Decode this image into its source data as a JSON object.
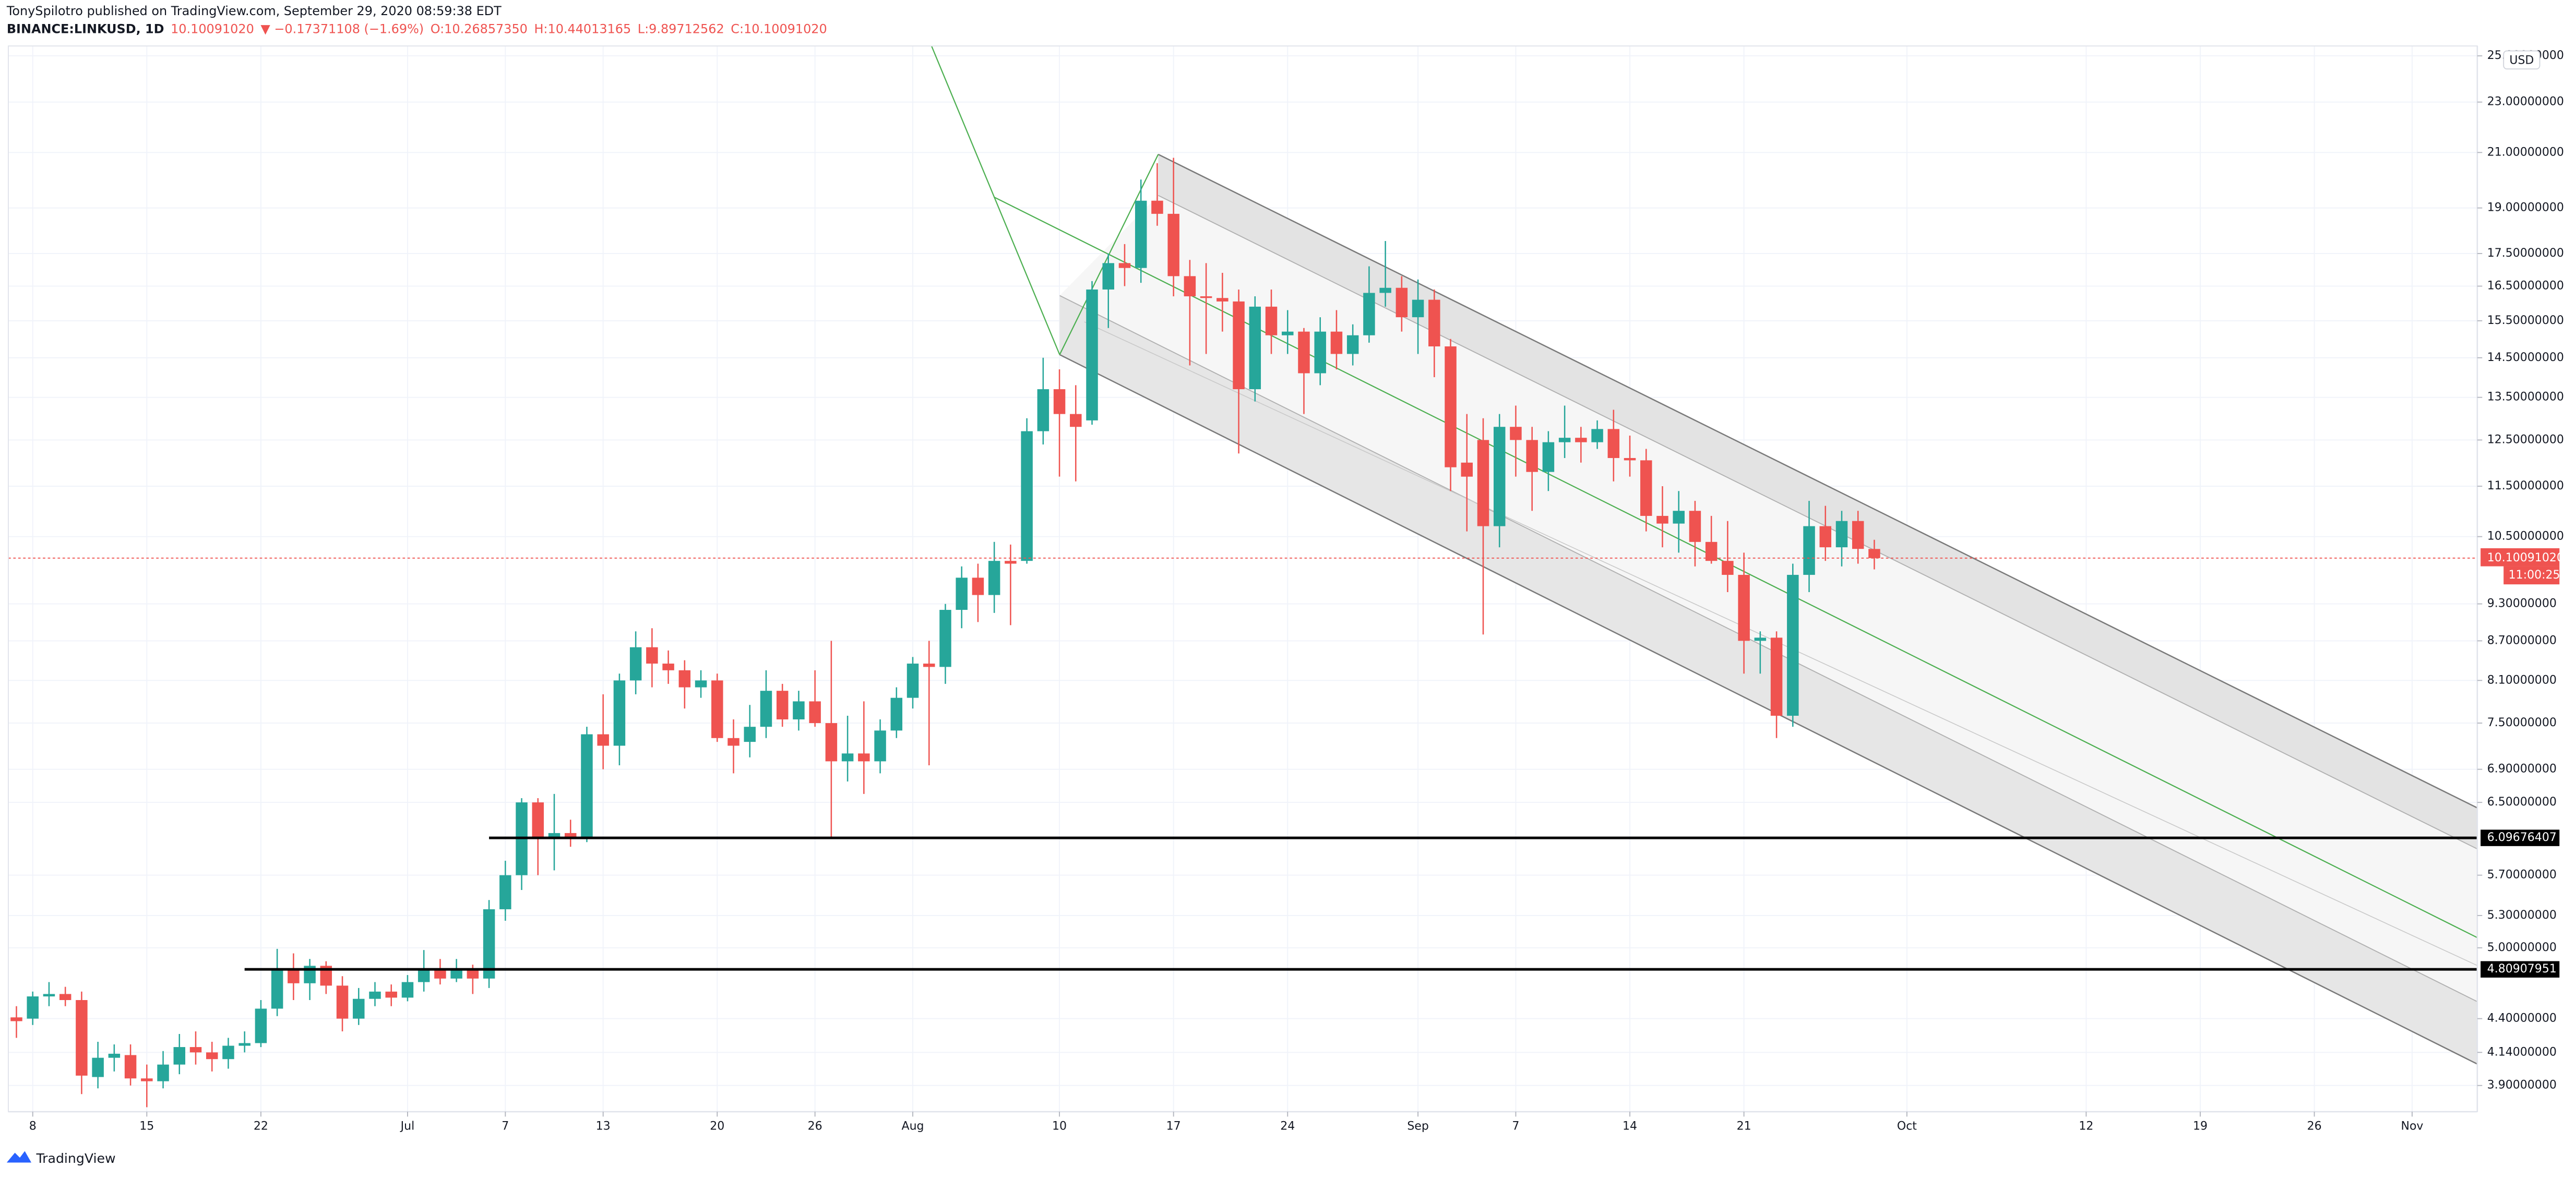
{
  "header": {
    "published": "TonySpilotro published on TradingView.com, September 29, 2020 08:59:38 EDT",
    "symbol": "BINANCE:LINKUSD, 1D",
    "last": "10.10091020",
    "change": "▼ −0.17371108 (−1.69%)",
    "open": "O:10.26857350",
    "high": "H:10.44013165",
    "low": "L:9.89712562",
    "close": "C:10.10091020"
  },
  "footer": {
    "brand": "TradingView"
  },
  "chart_data": {
    "type": "candlestick",
    "currency": "USD",
    "log_scale": true,
    "grid": true,
    "up_color": "#26a69a",
    "down_color": "#ef5350",
    "x": [
      "2020-06-07",
      "2020-06-08",
      "2020-06-09",
      "2020-06-10",
      "2020-06-11",
      "2020-06-12",
      "2020-06-13",
      "2020-06-14",
      "2020-06-15",
      "2020-06-16",
      "2020-06-17",
      "2020-06-18",
      "2020-06-19",
      "2020-06-20",
      "2020-06-21",
      "2020-06-22",
      "2020-06-23",
      "2020-06-24",
      "2020-06-25",
      "2020-06-26",
      "2020-06-27",
      "2020-06-28",
      "2020-06-29",
      "2020-06-30",
      "2020-07-01",
      "2020-07-02",
      "2020-07-03",
      "2020-07-04",
      "2020-07-05",
      "2020-07-06",
      "2020-07-07",
      "2020-07-08",
      "2020-07-09",
      "2020-07-10",
      "2020-07-11",
      "2020-07-12",
      "2020-07-13",
      "2020-07-14",
      "2020-07-15",
      "2020-07-16",
      "2020-07-17",
      "2020-07-18",
      "2020-07-19",
      "2020-07-20",
      "2020-07-21",
      "2020-07-22",
      "2020-07-23",
      "2020-07-24",
      "2020-07-25",
      "2020-07-26",
      "2020-07-27",
      "2020-07-28",
      "2020-07-29",
      "2020-07-30",
      "2020-07-31",
      "2020-08-01",
      "2020-08-02",
      "2020-08-03",
      "2020-08-04",
      "2020-08-05",
      "2020-08-06",
      "2020-08-07",
      "2020-08-08",
      "2020-08-09",
      "2020-08-10",
      "2020-08-11",
      "2020-08-12",
      "2020-08-13",
      "2020-08-14",
      "2020-08-15",
      "2020-08-16",
      "2020-08-17",
      "2020-08-18",
      "2020-08-19",
      "2020-08-20",
      "2020-08-21",
      "2020-08-22",
      "2020-08-23",
      "2020-08-24",
      "2020-08-25",
      "2020-08-26",
      "2020-08-27",
      "2020-08-28",
      "2020-08-29",
      "2020-08-30",
      "2020-08-31",
      "2020-09-01",
      "2020-09-02",
      "2020-09-03",
      "2020-09-04",
      "2020-09-05",
      "2020-09-06",
      "2020-09-07",
      "2020-09-08",
      "2020-09-09",
      "2020-09-10",
      "2020-09-11",
      "2020-09-12",
      "2020-09-13",
      "2020-09-14",
      "2020-09-15",
      "2020-09-16",
      "2020-09-17",
      "2020-09-18",
      "2020-09-19",
      "2020-09-20",
      "2020-09-21",
      "2020-09-22",
      "2020-09-23",
      "2020-09-24",
      "2020-09-25",
      "2020-09-26",
      "2020-09-27",
      "2020-09-28",
      "2020-09-29"
    ],
    "open": [
      4.41,
      4.4,
      4.58,
      4.6,
      4.55,
      3.96,
      4.1,
      4.12,
      3.95,
      3.93,
      4.05,
      4.18,
      4.14,
      4.09,
      4.19,
      4.21,
      4.48,
      4.81,
      4.69,
      4.84,
      4.67,
      4.4,
      4.56,
      4.62,
      4.57,
      4.7,
      4.81,
      4.73,
      4.81,
      4.73,
      5.36,
      5.7,
      6.5,
      6.1,
      6.15,
      6.1,
      7.35,
      7.2,
      8.1,
      8.6,
      8.35,
      8.25,
      8.0,
      8.1,
      7.3,
      7.25,
      7.45,
      7.95,
      7.55,
      7.8,
      7.5,
      7.0,
      7.1,
      7.0,
      7.4,
      7.85,
      8.35,
      8.3,
      9.2,
      9.75,
      9.45,
      10.05,
      10.05,
      12.7,
      13.7,
      13.1,
      12.95,
      16.4,
      17.2,
      17.05,
      19.25,
      18.8,
      16.8,
      16.2,
      16.15,
      16.05,
      13.7,
      15.9,
      15.1,
      15.2,
      14.1,
      15.2,
      14.6,
      15.1,
      16.3,
      16.45,
      15.6,
      16.1,
      14.8,
      12.0,
      12.5,
      10.7,
      12.8,
      12.5,
      11.8,
      12.45,
      12.55,
      12.45,
      12.75,
      12.1,
      12.05,
      10.9,
      10.75,
      11.0,
      10.4,
      10.05,
      9.8,
      8.7,
      8.75,
      7.6,
      9.8,
      10.7,
      10.3,
      10.8,
      10.2685735
    ],
    "high": [
      4.5,
      4.62,
      4.7,
      4.66,
      4.62,
      4.22,
      4.2,
      4.2,
      4.05,
      4.15,
      4.28,
      4.3,
      4.22,
      4.25,
      4.3,
      4.55,
      4.99,
      4.95,
      4.9,
      4.88,
      4.75,
      4.65,
      4.7,
      4.68,
      4.76,
      4.98,
      4.9,
      4.9,
      4.85,
      5.45,
      5.85,
      6.55,
      6.55,
      6.6,
      6.3,
      7.45,
      7.9,
      8.2,
      8.85,
      8.9,
      8.55,
      8.4,
      8.25,
      8.2,
      7.55,
      7.75,
      8.25,
      8.05,
      7.95,
      8.25,
      8.7,
      7.6,
      7.8,
      7.55,
      8.0,
      8.45,
      8.7,
      9.3,
      9.95,
      10.0,
      10.4,
      10.35,
      13.0,
      14.5,
      14.2,
      13.8,
      16.65,
      17.5,
      17.8,
      20.0,
      20.6,
      20.8,
      17.3,
      17.2,
      16.9,
      16.4,
      16.2,
      16.4,
      15.8,
      15.3,
      15.6,
      15.8,
      15.4,
      17.1,
      17.9,
      16.8,
      16.7,
      16.4,
      15.0,
      13.1,
      13.0,
      13.1,
      13.3,
      12.8,
      12.7,
      13.3,
      12.8,
      12.95,
      13.2,
      12.6,
      12.3,
      11.5,
      11.4,
      11.2,
      10.9,
      10.8,
      10.2,
      8.85,
      8.85,
      10.0,
      11.2,
      11.1,
      11.0,
      11.0,
      10.44013165
    ],
    "low": [
      4.25,
      4.35,
      4.5,
      4.5,
      3.84,
      3.88,
      4.0,
      3.9,
      3.75,
      3.88,
      3.98,
      4.05,
      4.0,
      4.02,
      4.14,
      4.18,
      4.42,
      4.55,
      4.55,
      4.6,
      4.3,
      4.35,
      4.5,
      4.5,
      4.54,
      4.62,
      4.68,
      4.7,
      4.6,
      4.65,
      5.25,
      5.55,
      5.7,
      5.75,
      6.0,
      6.05,
      6.9,
      6.95,
      7.9,
      8.0,
      8.05,
      7.7,
      7.85,
      7.25,
      6.85,
      7.05,
      7.3,
      7.45,
      7.4,
      7.45,
      6.1,
      6.75,
      6.6,
      6.85,
      7.3,
      7.7,
      6.95,
      8.05,
      8.9,
      9.0,
      9.15,
      8.95,
      10.0,
      12.4,
      11.7,
      11.6,
      12.85,
      15.3,
      16.5,
      16.6,
      18.4,
      16.2,
      14.3,
      14.6,
      15.2,
      12.2,
      13.4,
      14.6,
      14.6,
      13.1,
      13.8,
      14.2,
      14.3,
      14.9,
      15.9,
      15.2,
      14.6,
      14.0,
      11.4,
      10.6,
      8.8,
      10.3,
      11.7,
      11.0,
      11.4,
      12.1,
      12.0,
      12.3,
      11.6,
      11.7,
      10.6,
      10.3,
      10.2,
      9.95,
      10.0,
      9.5,
      8.2,
      8.2,
      7.3,
      7.45,
      9.5,
      10.05,
      9.95,
      10.0,
      9.89712562
    ],
    "close": [
      4.38,
      4.58,
      4.6,
      4.55,
      3.97,
      4.1,
      4.13,
      3.95,
      3.93,
      4.05,
      4.18,
      4.14,
      4.09,
      4.19,
      4.21,
      4.48,
      4.81,
      4.69,
      4.84,
      4.67,
      4.4,
      4.56,
      4.62,
      4.57,
      4.7,
      4.81,
      4.73,
      4.81,
      4.73,
      5.36,
      5.7,
      6.5,
      6.1,
      6.15,
      6.1,
      7.35,
      7.2,
      8.1,
      8.6,
      8.35,
      8.25,
      8.0,
      8.1,
      7.3,
      7.2,
      7.45,
      7.95,
      7.55,
      7.8,
      7.5,
      7.0,
      7.1,
      7.0,
      7.4,
      7.85,
      8.35,
      8.3,
      9.2,
      9.75,
      9.45,
      10.05,
      10.0,
      12.7,
      13.7,
      13.1,
      12.8,
      16.4,
      17.2,
      17.05,
      19.25,
      18.8,
      16.8,
      16.2,
      16.15,
      16.05,
      13.7,
      15.9,
      15.1,
      15.2,
      14.1,
      15.2,
      14.6,
      15.1,
      16.3,
      16.45,
      15.6,
      16.1,
      14.8,
      11.9,
      11.7,
      10.7,
      12.8,
      12.5,
      11.8,
      12.45,
      12.55,
      12.45,
      12.75,
      12.1,
      12.05,
      10.9,
      10.75,
      11.0,
      10.4,
      10.05,
      9.8,
      8.7,
      8.75,
      7.6,
      9.8,
      10.7,
      10.3,
      10.8,
      10.27,
      10.1009102
    ],
    "xlim": [
      "2020-06-06",
      "2020-11-05"
    ],
    "xticks": [
      {
        "value": "2020-06-08",
        "label": "8"
      },
      {
        "value": "2020-06-15",
        "label": "15"
      },
      {
        "value": "2020-06-22",
        "label": "22"
      },
      {
        "value": "2020-07-01",
        "label": "Jul"
      },
      {
        "value": "2020-07-07",
        "label": "7"
      },
      {
        "value": "2020-07-13",
        "label": "13"
      },
      {
        "value": "2020-07-20",
        "label": "20"
      },
      {
        "value": "2020-07-26",
        "label": "26"
      },
      {
        "value": "2020-08-01",
        "label": "Aug"
      },
      {
        "value": "2020-08-10",
        "label": "10"
      },
      {
        "value": "2020-08-17",
        "label": "17"
      },
      {
        "value": "2020-08-24",
        "label": "24"
      },
      {
        "value": "2020-09-01",
        "label": "Sep"
      },
      {
        "value": "2020-09-07",
        "label": "7"
      },
      {
        "value": "2020-09-14",
        "label": "14"
      },
      {
        "value": "2020-09-21",
        "label": "21"
      },
      {
        "value": "2020-10-01",
        "label": "Oct"
      },
      {
        "value": "2020-10-12",
        "label": "12"
      },
      {
        "value": "2020-10-19",
        "label": "19"
      },
      {
        "value": "2020-10-26",
        "label": "26"
      },
      {
        "value": "2020-11-01",
        "label": "Nov"
      }
    ],
    "ylim": [
      3.72,
      25.45
    ],
    "yticks": [
      {
        "value": 25,
        "label": "25.00000000"
      },
      {
        "value": 23,
        "label": "23.00000000"
      },
      {
        "value": 21,
        "label": "21.00000000"
      },
      {
        "value": 19,
        "label": "19.00000000"
      },
      {
        "value": 17.5,
        "label": "17.50000000"
      },
      {
        "value": 16.5,
        "label": "16.50000000"
      },
      {
        "value": 15.5,
        "label": "15.50000000"
      },
      {
        "value": 14.5,
        "label": "14.50000000"
      },
      {
        "value": 13.5,
        "label": "13.50000000"
      },
      {
        "value": 12.5,
        "label": "12.50000000"
      },
      {
        "value": 11.5,
        "label": "11.50000000"
      },
      {
        "value": 10.5,
        "label": "10.50000000"
      },
      {
        "value": 9.3,
        "label": "9.30000000"
      },
      {
        "value": 8.7,
        "label": "8.70000000"
      },
      {
        "value": 8.1,
        "label": "8.10000000"
      },
      {
        "value": 7.5,
        "label": "7.50000000"
      },
      {
        "value": 6.9,
        "label": "6.90000000"
      },
      {
        "value": 6.5,
        "label": "6.50000000"
      },
      {
        "value": 5.7,
        "label": "5.70000000"
      },
      {
        "value": 5.3,
        "label": "5.30000000"
      },
      {
        "value": 5,
        "label": "5.00000000"
      },
      {
        "value": 4.4,
        "label": "4.40000000"
      },
      {
        "value": 4.14,
        "label": "4.14000000"
      },
      {
        "value": 3.9,
        "label": "3.90000000"
      }
    ],
    "price_line": {
      "value": 10.1009102,
      "label": "10.10091020",
      "countdown": "11:00:25",
      "color": "#ef5350"
    },
    "hlines": [
      {
        "value": 6.09676407,
        "start": "2020-07-06"
      },
      {
        "value": 4.80907951,
        "start": "2020-06-21"
      }
    ]
  }
}
